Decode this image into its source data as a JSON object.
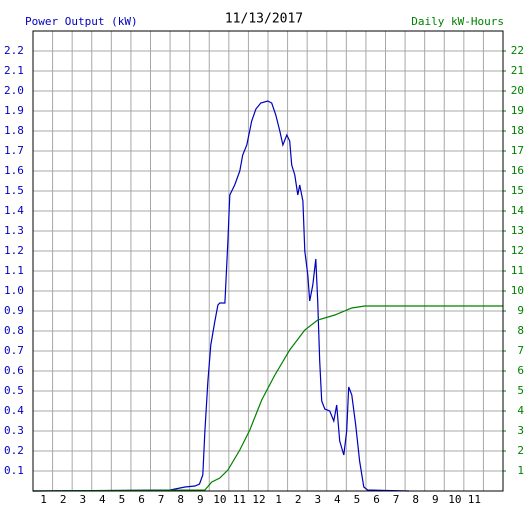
{
  "chart_data": {
    "type": "line",
    "title": "11/13/2017",
    "y_label": "Power Output (kW)",
    "y2_label": "Daily kW-Hours",
    "xlim": [
      0,
      24
    ],
    "xticks": [
      1,
      2,
      3,
      4,
      5,
      6,
      7,
      8,
      9,
      10,
      11,
      12,
      {
        "value": 13,
        "label": "1"
      },
      {
        "value": 14,
        "label": "2"
      },
      {
        "value": 15,
        "label": "3"
      },
      {
        "value": 16,
        "label": "4"
      },
      {
        "value": 17,
        "label": "5"
      },
      {
        "value": 18,
        "label": "6"
      },
      {
        "value": 19,
        "label": "7"
      },
      {
        "value": 20,
        "label": "8"
      },
      {
        "value": 21,
        "label": "9"
      },
      {
        "value": 22,
        "label": "10"
      },
      {
        "value": 23,
        "label": "11"
      }
    ],
    "ylim": [
      0,
      2.3
    ],
    "yticks": [
      0.1,
      0.2,
      0.3,
      0.4,
      0.5,
      0.6,
      0.7,
      0.8,
      0.9,
      {
        "value": 1.0,
        "label": "1.0"
      },
      1.1,
      1.2,
      1.3,
      1.4,
      1.5,
      1.6,
      1.7,
      1.8,
      1.9,
      {
        "value": 2.0,
        "label": "2.0"
      },
      2.1,
      2.2
    ],
    "y2lim": [
      0,
      23
    ],
    "y2ticks": [
      1,
      2,
      3,
      4,
      5,
      6,
      7,
      8,
      9,
      10,
      11,
      12,
      13,
      14,
      15,
      16,
      17,
      18,
      19,
      20,
      21,
      22
    ],
    "grid": true,
    "series": [
      {
        "name": "Power Output (kW)",
        "color": "#0000c0",
        "x": [
          0,
          7.0,
          7.76,
          8.27,
          8.5,
          8.67,
          8.78,
          8.93,
          9.08,
          9.29,
          9.44,
          9.54,
          9.8,
          9.95,
          10.05,
          10.3,
          10.56,
          10.71,
          10.92,
          11.17,
          11.38,
          11.63,
          11.99,
          12.19,
          12.4,
          12.6,
          12.76,
          12.96,
          13.11,
          13.21,
          13.37,
          13.52,
          13.62,
          13.78,
          13.88,
          14.03,
          14.13,
          14.29,
          14.44,
          14.54,
          14.64,
          14.74,
          14.9,
          15.15,
          15.36,
          15.51,
          15.66,
          15.87,
          16.02,
          16.12,
          16.28,
          16.48,
          16.68,
          16.89,
          17.09,
          19.2
        ],
        "values": [
          0,
          0.005,
          0.02,
          0.025,
          0.035,
          0.08,
          0.3,
          0.55,
          0.73,
          0.85,
          0.93,
          0.94,
          0.94,
          1.25,
          1.48,
          1.53,
          1.6,
          1.68,
          1.73,
          1.85,
          1.91,
          1.94,
          1.95,
          1.94,
          1.88,
          1.8,
          1.73,
          1.78,
          1.75,
          1.63,
          1.58,
          1.48,
          1.53,
          1.45,
          1.2,
          1.08,
          0.95,
          1.03,
          1.16,
          0.95,
          0.65,
          0.45,
          0.41,
          0.4,
          0.35,
          0.43,
          0.25,
          0.18,
          0.3,
          0.52,
          0.48,
          0.33,
          0.15,
          0.02,
          0.005,
          0
        ]
      },
      {
        "name": "Daily kW-Hours",
        "color": "#008000",
        "axis": "y2",
        "x": [
          0,
          8.78,
          9.13,
          9.54,
          9.95,
          10.56,
          11.07,
          11.68,
          12.35,
          13.11,
          13.88,
          14.54,
          15.41,
          16.28,
          16.94,
          24
        ],
        "values": [
          0,
          0.05,
          0.45,
          0.65,
          1.05,
          2.05,
          3.05,
          4.55,
          5.8,
          7.05,
          8.05,
          8.55,
          8.8,
          9.15,
          9.25,
          9.25
        ]
      }
    ]
  }
}
